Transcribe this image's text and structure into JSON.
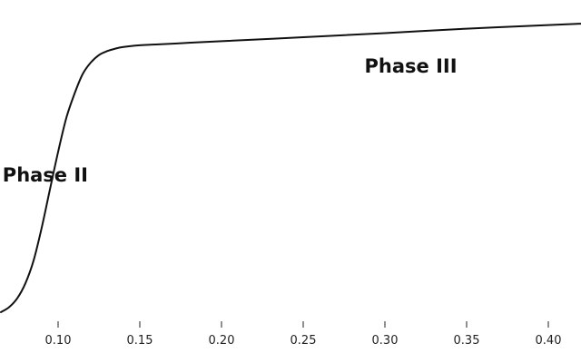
{
  "chart_data": {
    "type": "line",
    "title": "",
    "xlabel": "",
    "ylabel": "",
    "xlim": [
      0.065,
      0.42
    ],
    "ylim": [
      0,
      1.0
    ],
    "grid": false,
    "legend": "none",
    "x_ticks": [
      "0.10",
      "0.15",
      "0.20",
      "0.25",
      "0.30",
      "0.35",
      "0.40"
    ],
    "x_tick_values": [
      0.1,
      0.15,
      0.2,
      0.25,
      0.3,
      0.35,
      0.4
    ],
    "series": [
      {
        "color": "#111111",
        "x": [
          0.065,
          0.07,
          0.075,
          0.08,
          0.085,
          0.09,
          0.095,
          0.1,
          0.105,
          0.11,
          0.115,
          0.12,
          0.125,
          0.13,
          0.135,
          0.14,
          0.15,
          0.16,
          0.18,
          0.2,
          0.25,
          0.3,
          0.35,
          0.4,
          0.42
        ],
        "y": [
          0.0,
          0.018,
          0.05,
          0.104,
          0.186,
          0.305,
          0.442,
          0.577,
          0.699,
          0.786,
          0.857,
          0.899,
          0.926,
          0.94,
          0.949,
          0.955,
          0.961,
          0.964,
          0.97,
          0.976,
          0.99,
          1.005,
          1.021,
          1.034,
          1.039
        ]
      }
    ],
    "annotations": [
      {
        "text": "Phase II",
        "x": 0.066,
        "y": 0.47
      },
      {
        "text": "Phase III",
        "x": 0.2875,
        "y": 0.862
      }
    ]
  }
}
